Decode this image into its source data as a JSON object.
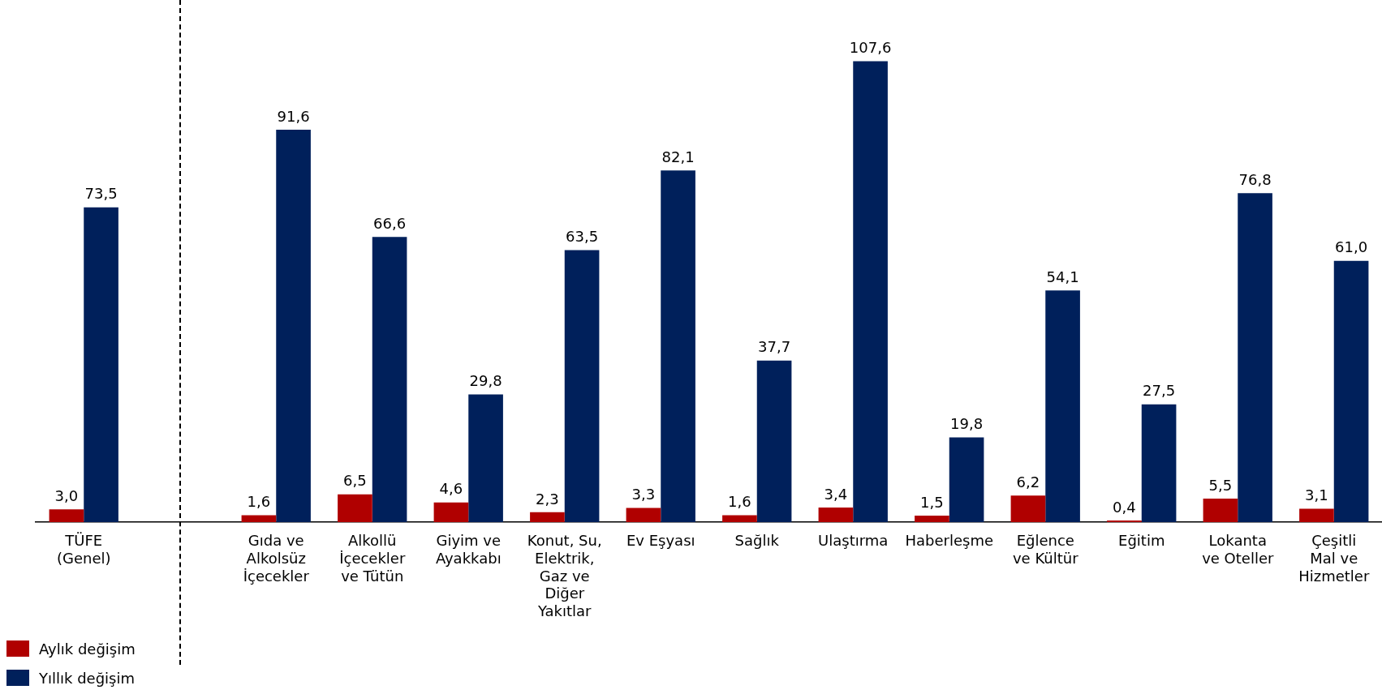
{
  "chart_data": {
    "type": "bar",
    "categories": [
      "TÜFE\n(Genel)",
      null,
      "Gıda ve\nAlkolsüz\nİçecekler",
      "Alkollü\nİçecekler\nve Tütün",
      "Giyim ve\nAyakkabı",
      "Konut, Su,\nElektrik,\nGaz ve\nDiğer\nYakıtlar",
      "Ev Eşyası",
      "Sağlık",
      "Ulaştırma",
      "Haberleşme",
      "Eğlence\nve Kültür",
      "Eğitim",
      "Lokanta\nve Oteller",
      "Çeşitli\nMal ve\nHizmetler"
    ],
    "series": [
      {
        "name": "Aylık değişim",
        "color": "#b00000",
        "values": [
          3.0,
          null,
          1.6,
          6.5,
          4.6,
          2.3,
          3.3,
          1.6,
          3.4,
          1.5,
          6.2,
          0.4,
          5.5,
          3.1
        ],
        "value_labels": [
          "3,0",
          null,
          "1,6",
          "6,5",
          "4,6",
          "2,3",
          "3,3",
          "1,6",
          "3,4",
          "1,5",
          "6,2",
          "0,4",
          "5,5",
          "3,1"
        ]
      },
      {
        "name": "Yıllık değişim",
        "color": "#00205b",
        "values": [
          73.5,
          null,
          91.6,
          66.6,
          29.8,
          63.5,
          82.1,
          37.7,
          107.6,
          19.8,
          54.1,
          27.5,
          76.8,
          61.0
        ],
        "value_labels": [
          "73,5",
          null,
          "91,6",
          "66,6",
          "29,8",
          "63,5",
          "82,1",
          "37,7",
          "107,6",
          "19,8",
          "54,1",
          "27,5",
          "76,8",
          "61,0"
        ]
      }
    ],
    "relative": false,
    "legend": "bottom left"
  }
}
